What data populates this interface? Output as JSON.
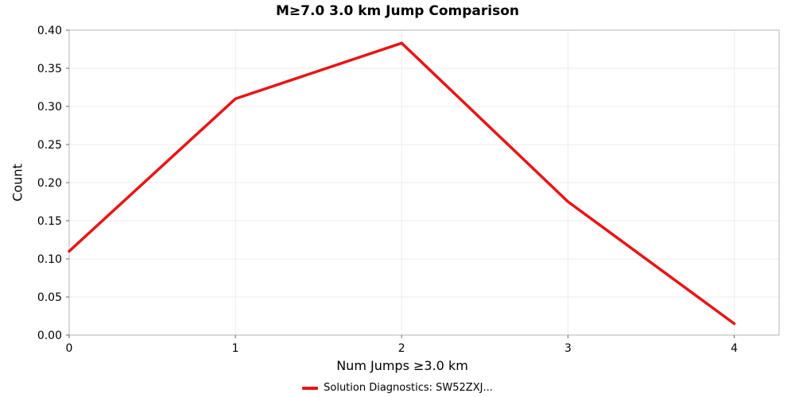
{
  "chart_data": {
    "type": "line",
    "title": "M≥7.0 3.0 km Jump Comparison",
    "xlabel": "Num Jumps ≥3.0 km",
    "ylabel": "Count",
    "x": [
      0,
      1,
      2,
      3,
      4
    ],
    "series": [
      {
        "name": "Solution Diagnostics: SW52ZXJ...",
        "color": "#e81414",
        "values": [
          0.11,
          0.31,
          0.383,
          0.175,
          0.015
        ]
      }
    ],
    "xlim": [
      0,
      4.27
    ],
    "ylim": [
      0.0,
      0.4
    ],
    "x_ticks": [
      0,
      1,
      2,
      3,
      4
    ],
    "x_tick_labels": [
      "0",
      "1",
      "2",
      "3",
      "4"
    ],
    "y_ticks": [
      0.0,
      0.05,
      0.1,
      0.15,
      0.2,
      0.25,
      0.3,
      0.35,
      0.4
    ],
    "y_tick_labels": [
      "0.00",
      "0.05",
      "0.10",
      "0.15",
      "0.20",
      "0.25",
      "0.30",
      "0.35",
      "0.40"
    ],
    "grid": true,
    "legend_position": "bottom",
    "plot_border_color": "#b6b6b6",
    "grid_color": "#ededed",
    "tick_color": "#666666"
  },
  "legend": {
    "label": "Solution Diagnostics: SW52ZXJ..."
  }
}
